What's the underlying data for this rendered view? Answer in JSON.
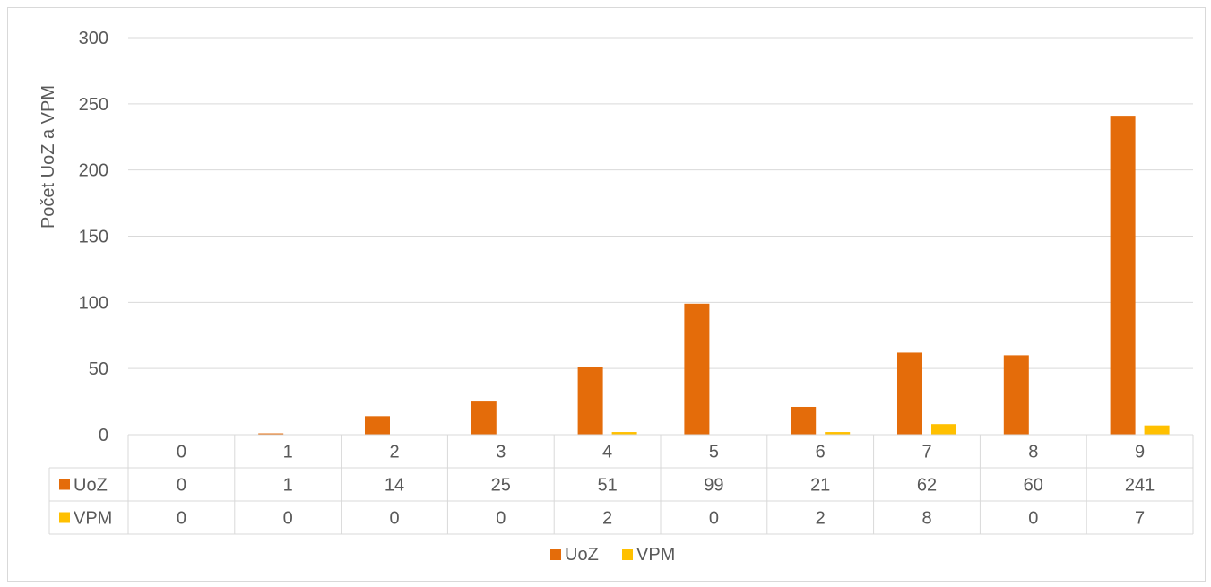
{
  "chart_data": {
    "type": "bar",
    "categories": [
      "0",
      "1",
      "2",
      "3",
      "4",
      "5",
      "6",
      "7",
      "8",
      "9"
    ],
    "series": [
      {
        "name": "UoZ",
        "color": "#E46C0A",
        "values": [
          0,
          1,
          14,
          25,
          51,
          99,
          21,
          62,
          60,
          241
        ]
      },
      {
        "name": "VPM",
        "color": "#FFC000",
        "values": [
          0,
          0,
          0,
          0,
          2,
          0,
          2,
          8,
          0,
          7
        ]
      }
    ],
    "ylabel": "Počet UoZ a VPM",
    "yticks": [
      "0",
      "50",
      "100",
      "150",
      "200",
      "250",
      "300"
    ],
    "ylim": [
      0,
      300
    ],
    "grid": true,
    "data_table": {
      "rows": [
        {
          "label": "UoZ",
          "values": [
            "0",
            "1",
            "14",
            "25",
            "51",
            "99",
            "21",
            "62",
            "60",
            "241"
          ]
        },
        {
          "label": "VPM",
          "values": [
            "0",
            "0",
            "0",
            "0",
            "2",
            "0",
            "2",
            "8",
            "0",
            "7"
          ]
        }
      ]
    },
    "legend": {
      "position": "bottom",
      "items": [
        "UoZ",
        "VPM"
      ]
    }
  }
}
